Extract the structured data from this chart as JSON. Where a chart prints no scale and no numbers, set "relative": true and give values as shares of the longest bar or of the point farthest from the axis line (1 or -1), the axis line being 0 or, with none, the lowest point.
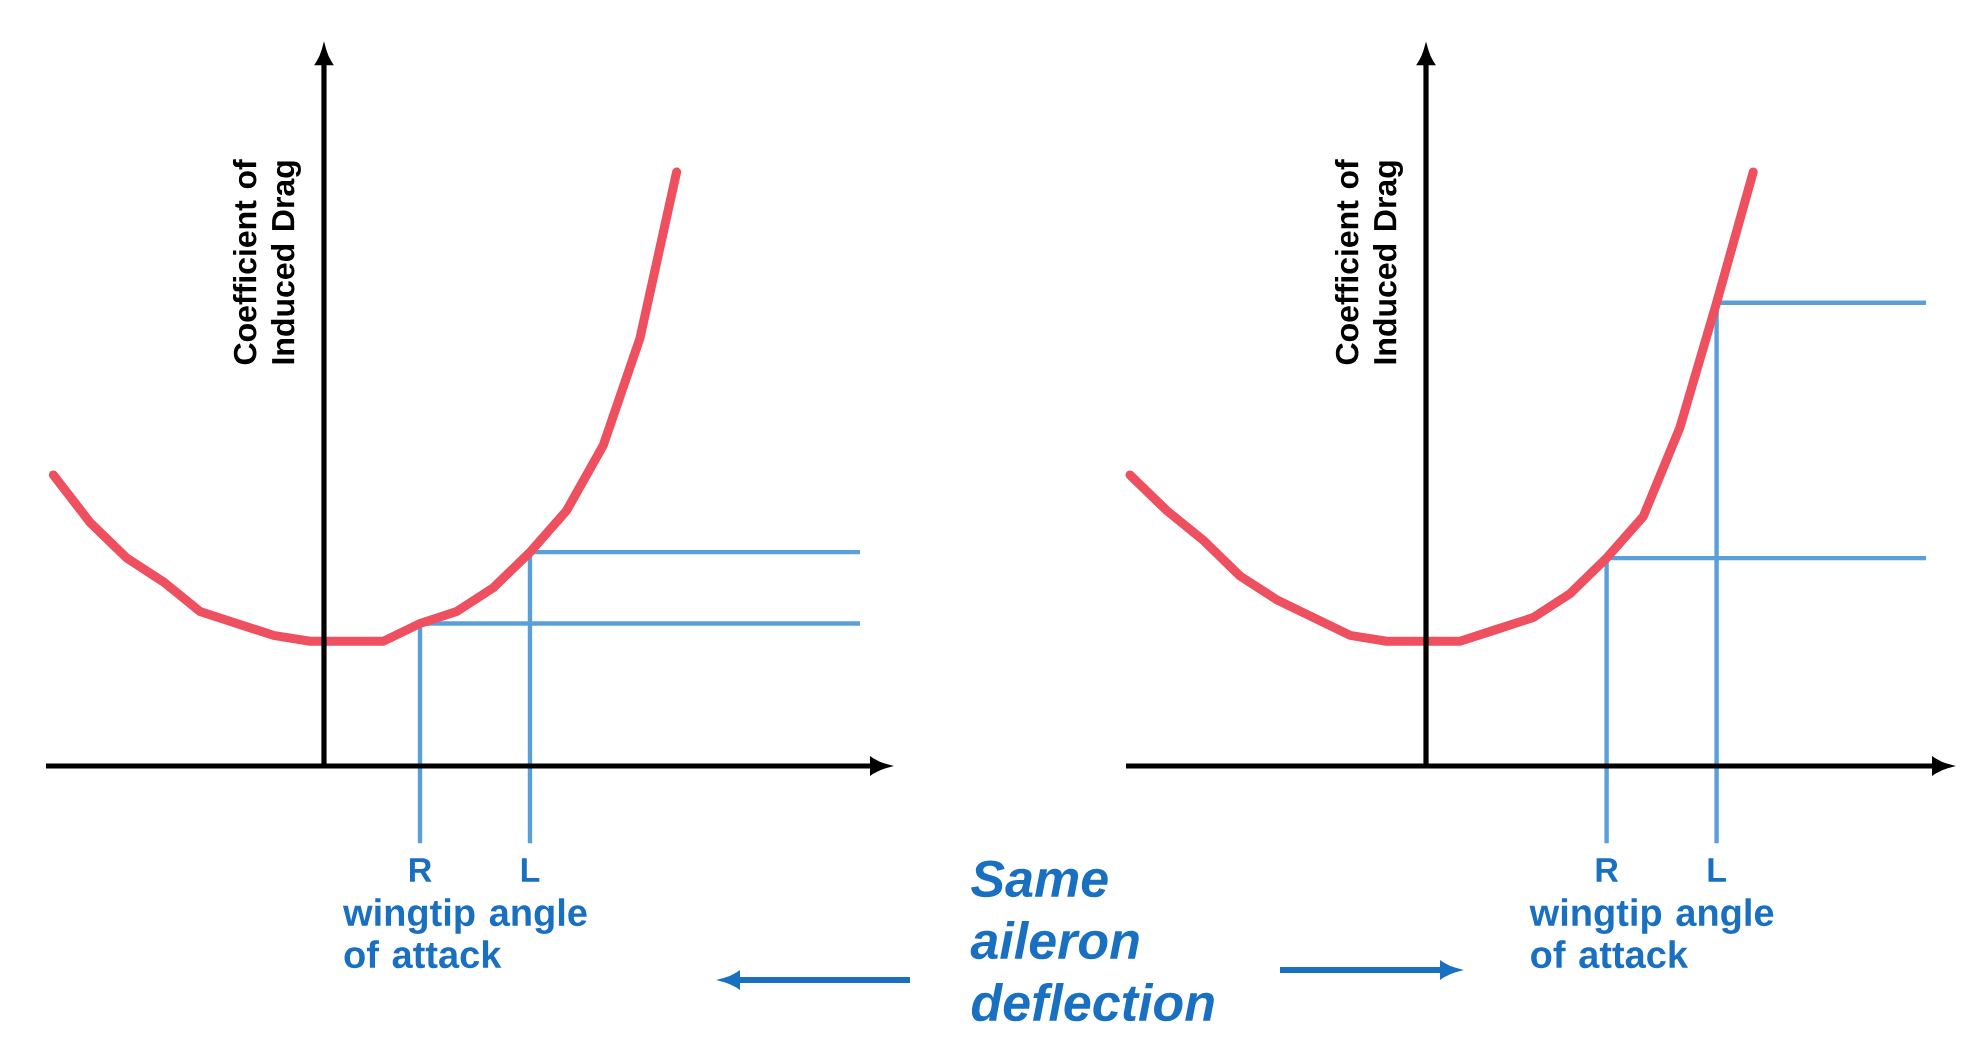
{
  "chart_data": [
    {
      "type": "line",
      "relative": true,
      "ylabel": "Coefficient of Induced Drag",
      "xlabel": "wingtip angle of attack",
      "categories": [
        null,
        null,
        null,
        null,
        null,
        null,
        null,
        null,
        null,
        null,
        "R",
        null,
        null,
        "L",
        null,
        null,
        null,
        null
      ],
      "series": [
        {
          "color": "#ee5060",
          "values": [
            0.49,
            0.41,
            0.35,
            0.31,
            0.26,
            0.24,
            0.22,
            0.21,
            0.21,
            0.21,
            0.24,
            0.26,
            0.3,
            0.36,
            0.43,
            0.54,
            0.72,
            1
          ]
        }
      ],
      "ref_lines": [
        {
          "axis": "x",
          "value": "R",
          "color": "#5aa0d8"
        },
        {
          "axis": "x",
          "value": "L",
          "color": "#5aa0d8"
        },
        {
          "axis": "y",
          "value": 0.24,
          "color": "#5aa0d8"
        },
        {
          "axis": "y",
          "value": 0.36,
          "color": "#5aa0d8"
        }
      ],
      "annotations": [
        "Same aileron deflection"
      ]
    },
    {
      "type": "line",
      "relative": true,
      "ylabel": "Coefficient of Induced Drag",
      "xlabel": "wingtip angle of attack",
      "categories": [
        null,
        null,
        null,
        null,
        null,
        null,
        null,
        null,
        null,
        null,
        null,
        null,
        null,
        "R",
        null,
        null,
        "L",
        null
      ],
      "series": [
        {
          "color": "#ee5060",
          "values": [
            0.49,
            0.43,
            0.38,
            0.32,
            0.28,
            0.25,
            0.22,
            0.21,
            0.21,
            0.21,
            0.23,
            0.25,
            0.29,
            0.35,
            0.42,
            0.57,
            0.78,
            1
          ]
        }
      ],
      "ref_lines": [
        {
          "axis": "x",
          "value": "R",
          "color": "#5aa0d8"
        },
        {
          "axis": "x",
          "value": "L",
          "color": "#5aa0d8"
        },
        {
          "axis": "y",
          "value": 0.35,
          "color": "#5aa0d8"
        },
        {
          "axis": "y",
          "value": 0.78,
          "color": "#5aa0d8"
        }
      ]
    }
  ]
}
